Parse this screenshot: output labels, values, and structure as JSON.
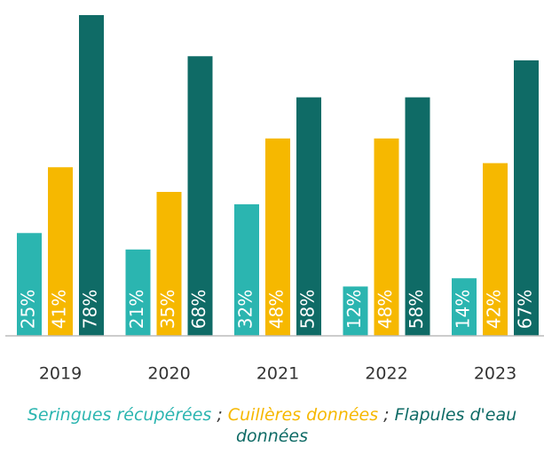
{
  "chart_data": {
    "type": "bar",
    "categories": [
      "2019",
      "2020",
      "2021",
      "2022",
      "2023"
    ],
    "series": [
      {
        "name": "Seringues récupérées",
        "color": "#2bb5b0",
        "values": [
          25,
          21,
          32,
          12,
          14
        ],
        "value_labels": [
          "25%",
          "21%",
          "32%",
          "12%",
          "14%"
        ]
      },
      {
        "name": "Cuillères données",
        "color": "#f6b800",
        "values": [
          41,
          35,
          48,
          48,
          42
        ],
        "value_labels": [
          "41%",
          "35%",
          "48%",
          "48%",
          "42%"
        ]
      },
      {
        "name": "Flapules d'eau données",
        "color": "#0f6b66",
        "values": [
          78,
          68,
          58,
          58,
          67
        ],
        "value_labels": [
          "78%",
          "68%",
          "58%",
          "58%",
          "67%"
        ]
      }
    ],
    "legend_separator": ";",
    "ylim": [
      0,
      78
    ]
  }
}
